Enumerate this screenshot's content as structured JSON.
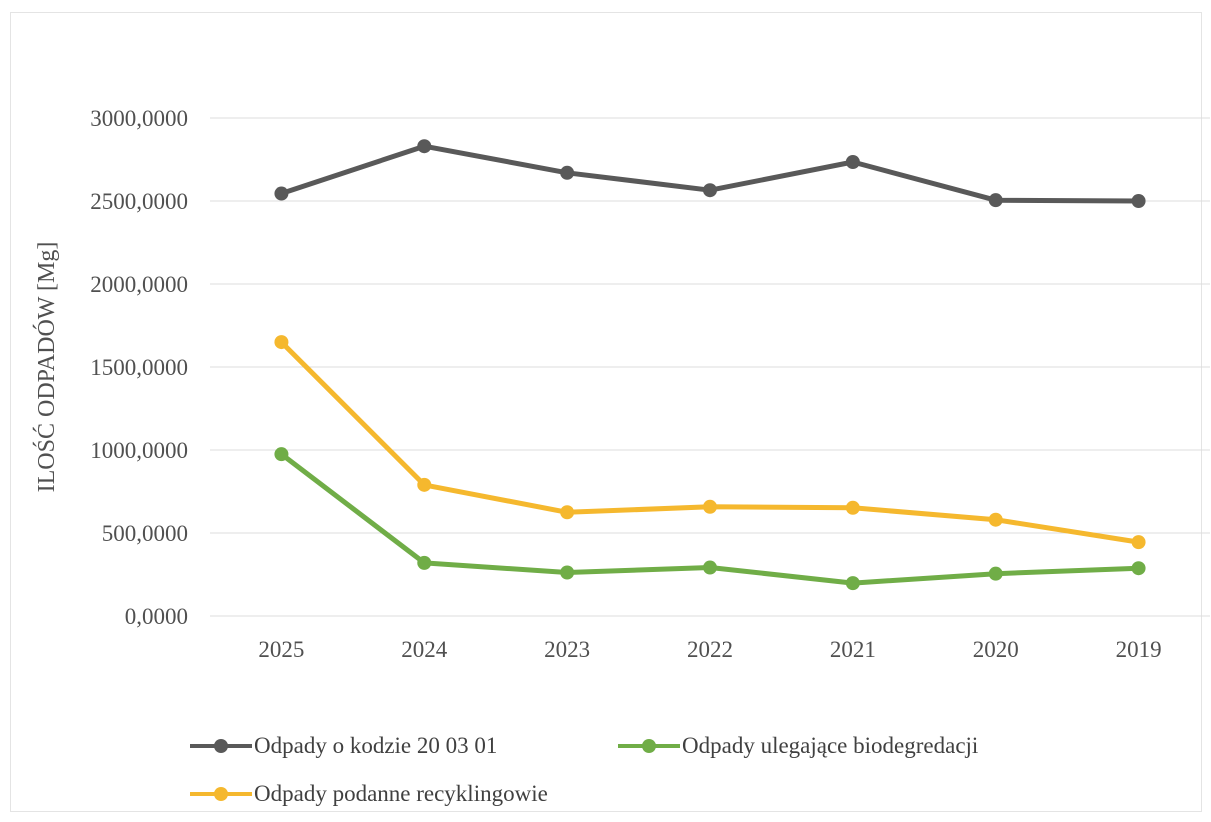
{
  "chart_data": {
    "type": "line",
    "categories": [
      "2025",
      "2024",
      "2023",
      "2022",
      "2021",
      "2020",
      "2019"
    ],
    "ylabel": "ILOŚĆ ODPADÓW [Mg]",
    "ylim": [
      0,
      3000
    ],
    "yticks": [
      0,
      500,
      1000,
      1500,
      2000,
      2500,
      3000
    ],
    "ytick_labels": [
      "0,0000",
      "500,0000",
      "1000,0000",
      "1500,0000",
      "2000,0000",
      "2500,0000",
      "3000,0000"
    ],
    "grid": true,
    "legend_position": "bottom",
    "series": [
      {
        "name": "Odpady o kodzie 20 03 01",
        "color": "#595959",
        "values": [
          2545,
          2830,
          2670,
          2565,
          2735,
          2505,
          2500
        ]
      },
      {
        "name": "Odpady ulegające biodegredacji",
        "color": "#70ad47",
        "values": [
          975,
          320,
          262,
          292,
          198,
          255,
          288
        ]
      },
      {
        "name": "Odpady podanne recyklingowie",
        "color": "#f5b82e",
        "values": [
          1650,
          790,
          625,
          658,
          652,
          580,
          445
        ]
      }
    ]
  }
}
